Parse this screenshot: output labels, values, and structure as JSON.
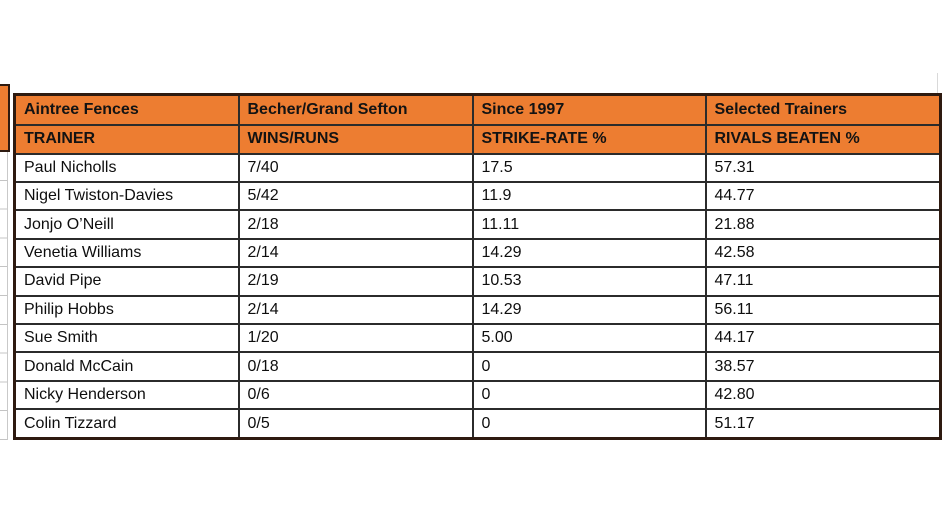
{
  "colors": {
    "header_orange": "#ED7D31",
    "outer_border": "#2E1A10",
    "grid_line": "#2B2B2B"
  },
  "chart_data": {
    "type": "table",
    "title_row": [
      "Aintree Fences",
      "Becher/Grand Sefton",
      "Since 1997",
      "Selected Trainers"
    ],
    "header_row": [
      "TRAINER",
      "WINS/RUNS",
      "STRIKE-RATE %",
      "RIVALS BEATEN %"
    ],
    "rows": [
      [
        "Paul Nicholls",
        "7/40",
        "17.5",
        "57.31"
      ],
      [
        "Nigel Twiston-Davies",
        "5/42",
        "11.9",
        "44.77"
      ],
      [
        "Jonjo O’Neill",
        "2/18",
        "11.11",
        "21.88"
      ],
      [
        "Venetia Williams",
        "2/14",
        "14.29",
        "42.58"
      ],
      [
        "David Pipe",
        "2/19",
        "10.53",
        "47.11"
      ],
      [
        "Philip Hobbs",
        "2/14",
        "14.29",
        "56.11"
      ],
      [
        "Sue Smith",
        "1/20",
        "5.00",
        "44.17"
      ],
      [
        "Donald McCain",
        "0/18",
        "0",
        "38.57"
      ],
      [
        "Nicky Henderson",
        "0/6",
        "0",
        "42.80"
      ],
      [
        "Colin Tizzard",
        "0/5",
        "0",
        "51.17"
      ]
    ]
  }
}
